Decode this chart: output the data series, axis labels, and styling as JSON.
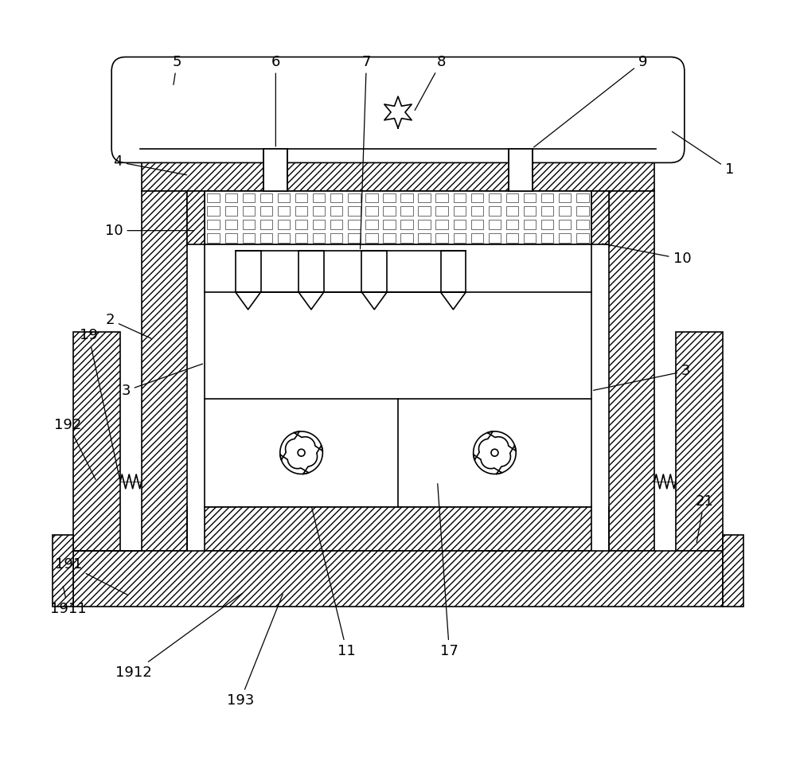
{
  "bg_color": "#ffffff",
  "line_color": "#000000",
  "figsize": [
    10.0,
    9.56
  ],
  "dpi": 100,
  "lw": 1.2,
  "hatch": "////",
  "fs": 13
}
